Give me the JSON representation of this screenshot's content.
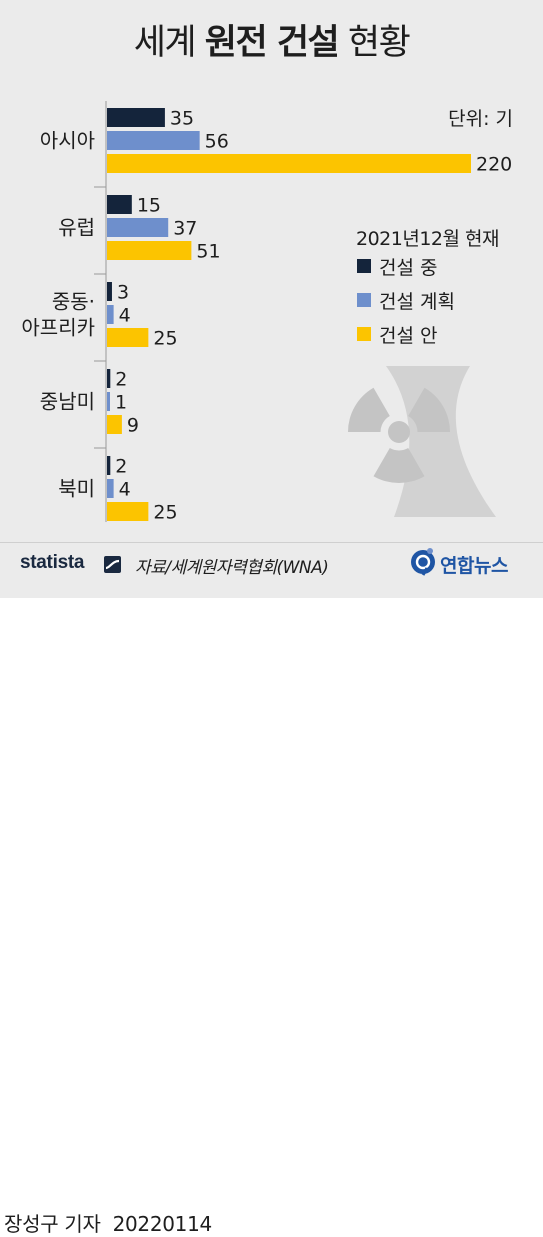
{
  "title": {
    "part1": "세계",
    "bold": "원전 건설",
    "part2": "현황"
  },
  "unit": "단위: 기",
  "as_of": "2021년12월 현재",
  "legend": [
    {
      "label": "건설 중",
      "color": "#14243b"
    },
    {
      "label": "건설 계획",
      "color": "#6e8fcc"
    },
    {
      "label": "건설 안",
      "color": "#fcc400"
    }
  ],
  "footer": {
    "statista": "statista",
    "source": "자료/세계원자력협회(WNA)",
    "agency": "연합뉴스"
  },
  "byline": {
    "author": "장성구 기자",
    "date": "20220114"
  },
  "chart_data": {
    "type": "bar",
    "orientation": "horizontal",
    "categories": [
      [
        "아시아"
      ],
      [
        "유럽"
      ],
      [
        "중동·",
        "아프리카"
      ],
      [
        "중남미"
      ],
      [
        "북미"
      ]
    ],
    "series": [
      {
        "name": "건설 중",
        "values": [
          35,
          15,
          3,
          2,
          2
        ]
      },
      {
        "name": "건설 계획",
        "values": [
          56,
          37,
          4,
          1,
          4
        ]
      },
      {
        "name": "건설 안",
        "values": [
          220,
          51,
          25,
          9,
          25
        ]
      }
    ],
    "colors": [
      "#14243b",
      "#6e8fcc",
      "#fcc400"
    ],
    "grid": false,
    "data_labels": true,
    "legend_position": "right"
  }
}
